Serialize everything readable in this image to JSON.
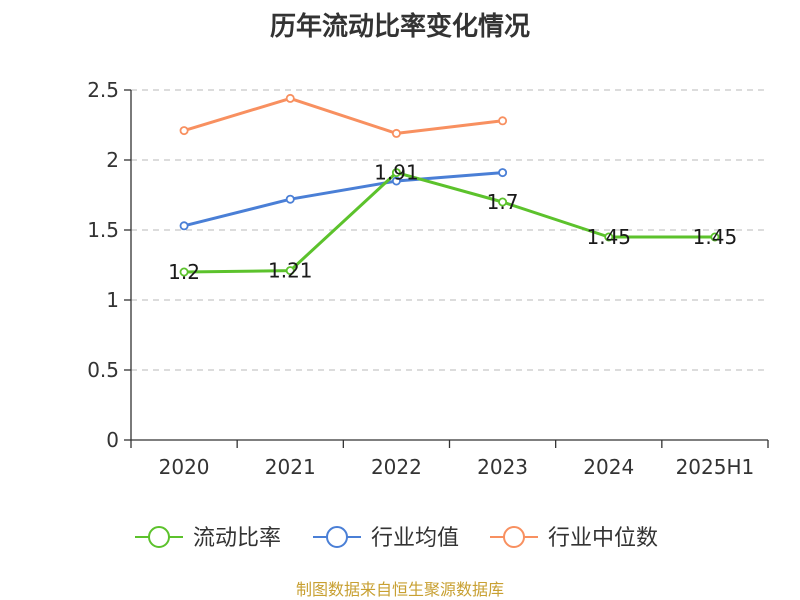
{
  "chart_data": {
    "type": "line",
    "title": "历年流动比率变化情况",
    "categories": [
      "2020",
      "2021",
      "2022",
      "2023",
      "2024",
      "2025H1"
    ],
    "ylim": [
      0,
      2.5
    ],
    "yticks": [
      "0",
      "0.5",
      "1",
      "1.5",
      "2",
      "2.5"
    ],
    "grid": true,
    "legend_position": "bottom",
    "series": [
      {
        "name": "流动比率",
        "color": "#5cc22c",
        "values": [
          1.2,
          1.21,
          1.91,
          1.7,
          1.45,
          1.45
        ],
        "labels": [
          "1.2",
          "1.21",
          "1.91",
          "1.7",
          "1.45",
          "1.45"
        ]
      },
      {
        "name": "行业均值",
        "color": "#4a7fd6",
        "values": [
          1.53,
          1.72,
          1.85,
          1.91,
          null,
          null
        ]
      },
      {
        "name": "行业中位数",
        "color": "#f89060",
        "values": [
          2.21,
          2.44,
          2.19,
          2.28,
          null,
          null
        ]
      }
    ]
  },
  "source_text": "制图数据来自恒生聚源数据库"
}
